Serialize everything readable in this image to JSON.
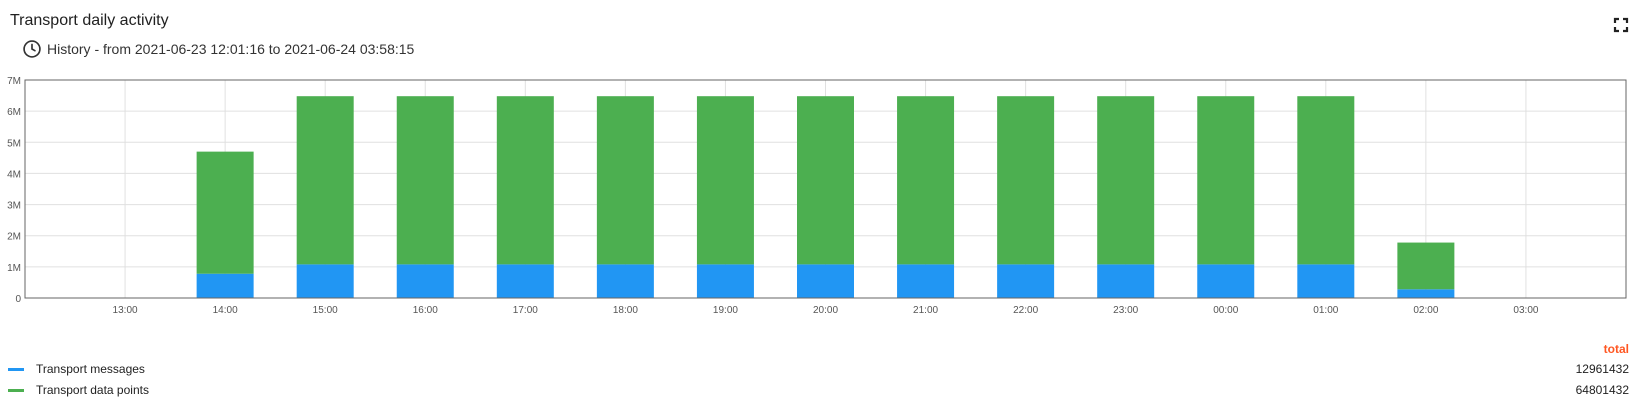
{
  "widget": {
    "title": "Transport daily activity",
    "subtitle": "History - from 2021-06-23 12:01:16 to 2021-06-24 03:58:15",
    "clock_icon": "clock-icon",
    "fullscreen_icon": "fullscreen-icon"
  },
  "legend": {
    "header": "total",
    "header_color": "#ff5722",
    "items": [
      {
        "label": "Transport messages",
        "total": "12961432",
        "color": "#2196f3"
      },
      {
        "label": "Transport data points",
        "total": "64801432",
        "color": "#4caf50"
      }
    ]
  },
  "chart_data": {
    "type": "bar",
    "stacked": true,
    "x_tick_labels": [
      "13:00",
      "14:00",
      "15:00",
      "16:00",
      "17:00",
      "18:00",
      "19:00",
      "20:00",
      "21:00",
      "22:00",
      "23:00",
      "00:00",
      "01:00",
      "02:00",
      "03:00"
    ],
    "y_tick_labels": [
      "0",
      "1M",
      "2M",
      "3M",
      "4M",
      "5M",
      "6M",
      "7M"
    ],
    "ylim": [
      0,
      7000000
    ],
    "grid": true,
    "series": [
      {
        "name": "Transport messages",
        "color": "#2196f3",
        "values": [
          0,
          780000,
          1080000,
          1080000,
          1080000,
          1080000,
          1080000,
          1080000,
          1080000,
          1080000,
          1080000,
          1080000,
          1080000,
          280000,
          0
        ]
      },
      {
        "name": "Transport data points",
        "color": "#4caf50",
        "values": [
          0,
          3920000,
          5400000,
          5400000,
          5400000,
          5400000,
          5400000,
          5400000,
          5400000,
          5400000,
          5400000,
          5400000,
          5400000,
          1500000,
          0
        ]
      }
    ]
  }
}
